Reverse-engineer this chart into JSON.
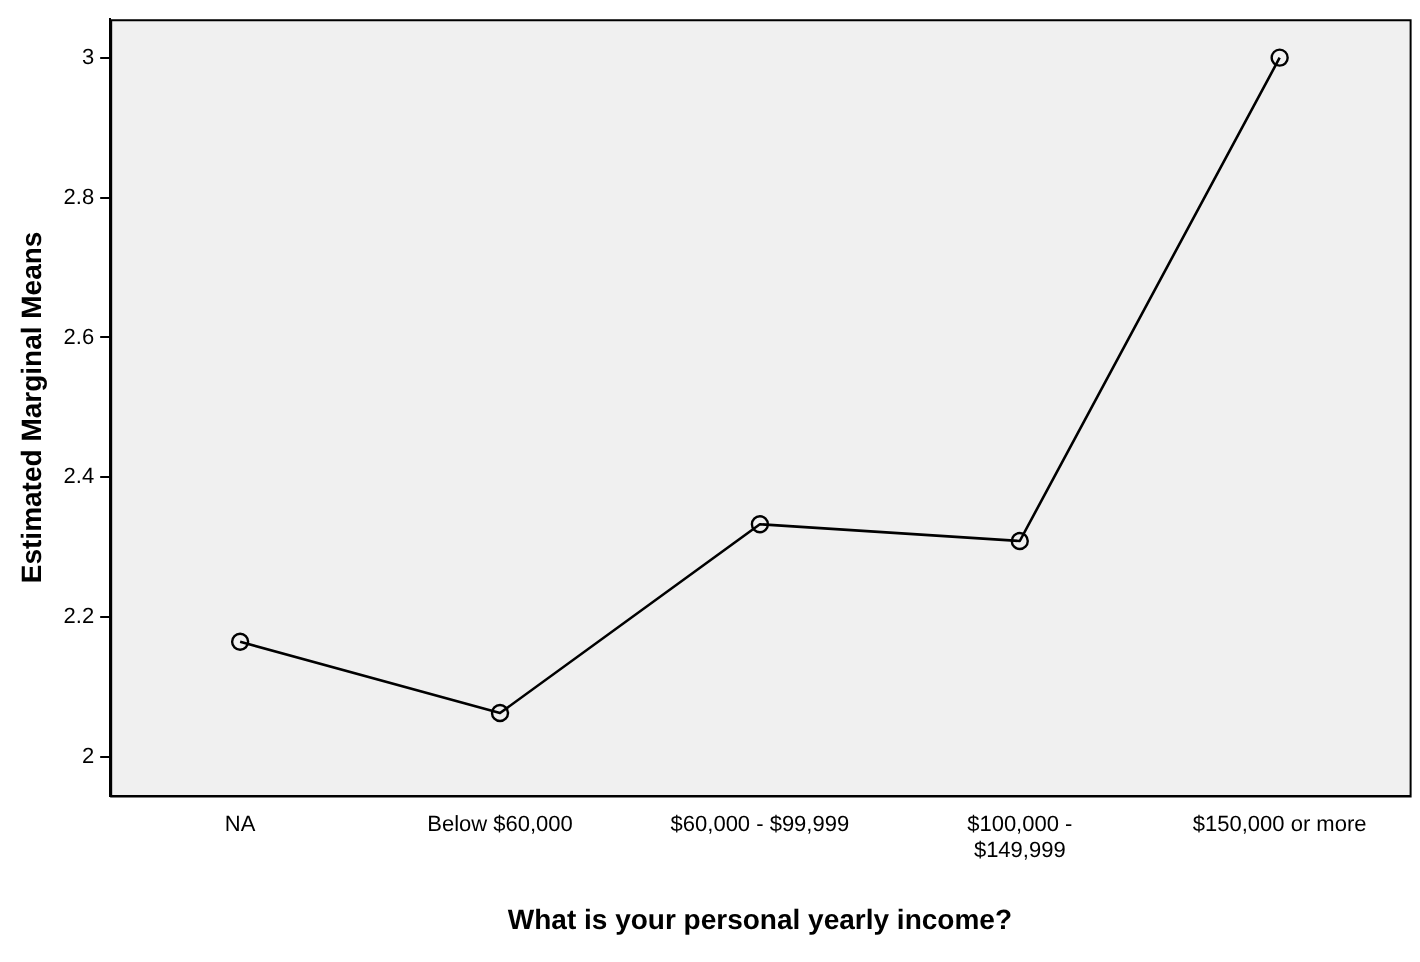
{
  "chart_data": {
    "type": "line",
    "xlabel": "What is your personal yearly income?",
    "ylabel": "Estimated Marginal Means",
    "categories": [
      "NA",
      "Below $60,000",
      "$60,000 - $99,999",
      "$100,000 - $149,999",
      "$150,000 or more"
    ],
    "series": [
      {
        "color": "#000000",
        "values": [
          2.165,
          2.063,
          2.333,
          2.309,
          3.0
        ]
      }
    ],
    "ylim": [
      1.945,
      3.055
    ],
    "yticks": [
      2,
      2.2,
      2.4,
      2.6,
      2.8,
      3
    ],
    "grid": false,
    "legend": false,
    "marker": "circle",
    "line_style": "solid"
  }
}
